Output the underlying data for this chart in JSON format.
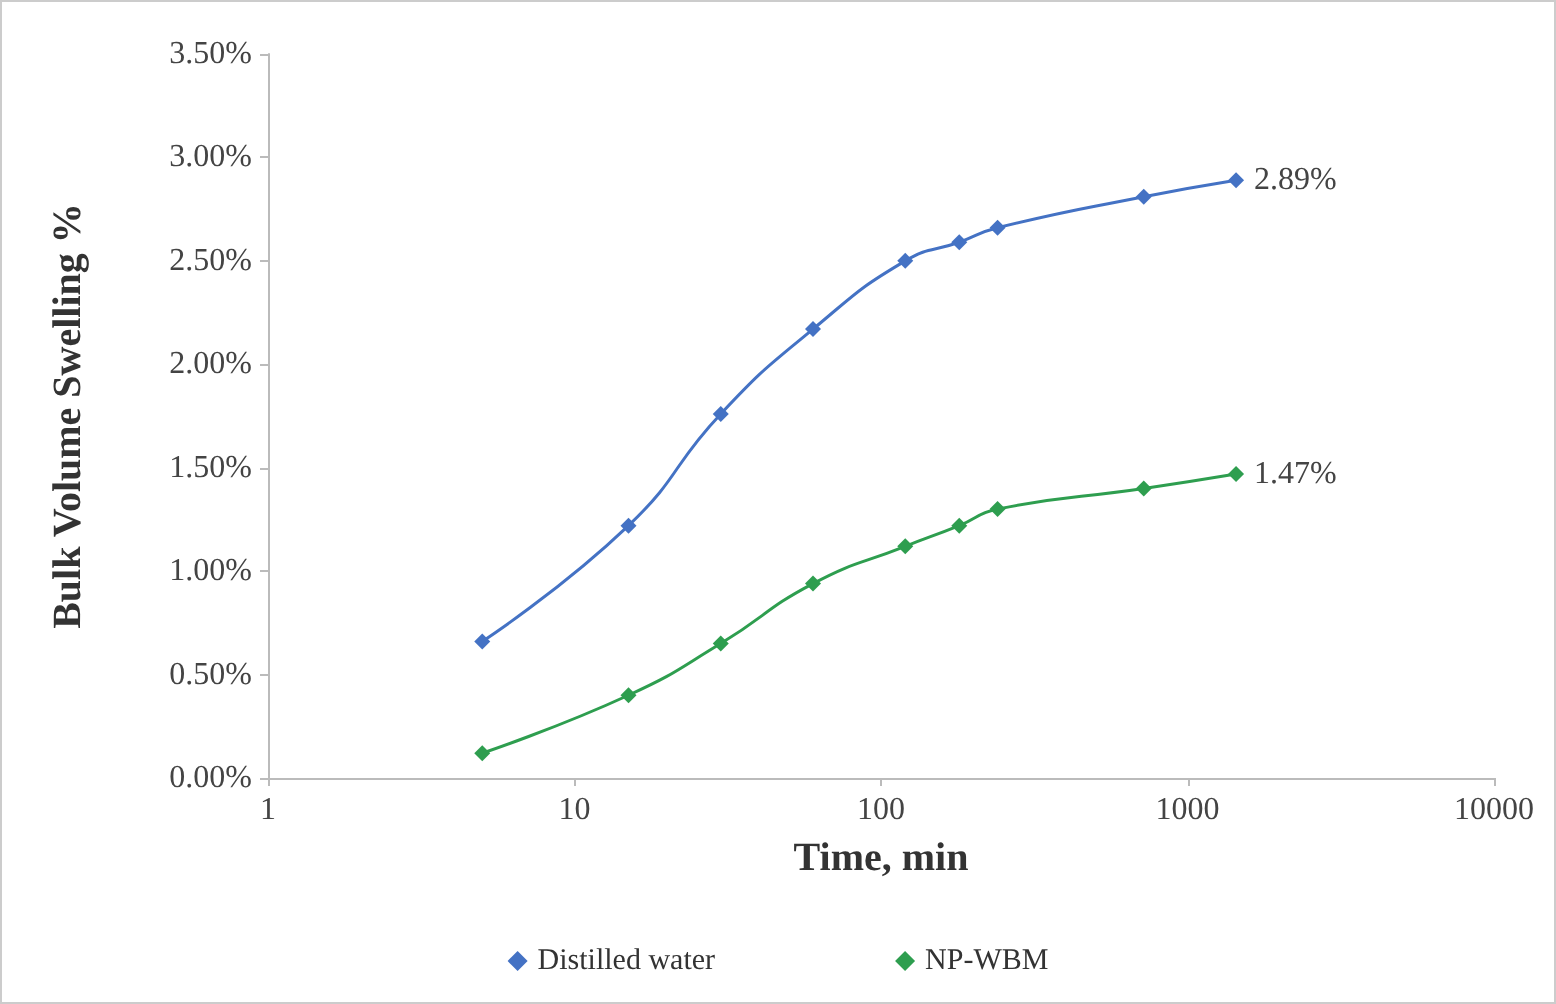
{
  "chart_data": {
    "type": "line",
    "xlabel": "Time, min",
    "ylabel": "Bulk Volume Swelling %",
    "x": [
      5,
      15,
      30,
      60,
      120,
      180,
      240,
      720,
      1440
    ],
    "series": [
      {
        "name": "Distilled water",
        "color": "#4472c4",
        "values": [
          0.66,
          1.22,
          1.76,
          2.17,
          2.5,
          2.59,
          2.66,
          2.81,
          2.89
        ],
        "value_labels": [
          null,
          null,
          null,
          null,
          null,
          null,
          null,
          null,
          "2.89%"
        ]
      },
      {
        "name": "NP-WBM",
        "color": "#2e9e4f",
        "values": [
          0.12,
          0.4,
          0.65,
          0.94,
          1.12,
          1.22,
          1.3,
          1.4,
          1.47
        ],
        "value_labels": [
          null,
          null,
          null,
          null,
          null,
          null,
          null,
          null,
          "1.47%"
        ]
      }
    ],
    "log": "x",
    "xlim": [
      1,
      10000
    ],
    "xticks": [
      1,
      10,
      100,
      1000,
      10000
    ],
    "ylim": [
      0,
      3.5
    ],
    "yticks": [
      {
        "value": 0,
        "label": "0.00%"
      },
      {
        "value": 0.5,
        "label": "0.50%"
      },
      {
        "value": 1,
        "label": "1.00%"
      },
      {
        "value": 1.5,
        "label": "1.50%"
      },
      {
        "value": 2,
        "label": "2.00%"
      },
      {
        "value": 2.5,
        "label": "2.50%"
      },
      {
        "value": 3,
        "label": "3.00%"
      },
      {
        "value": 3.5,
        "label": "3.50%"
      }
    ],
    "grid": false,
    "legend": "bottom",
    "marker": "diamond",
    "line_style": "solid"
  }
}
